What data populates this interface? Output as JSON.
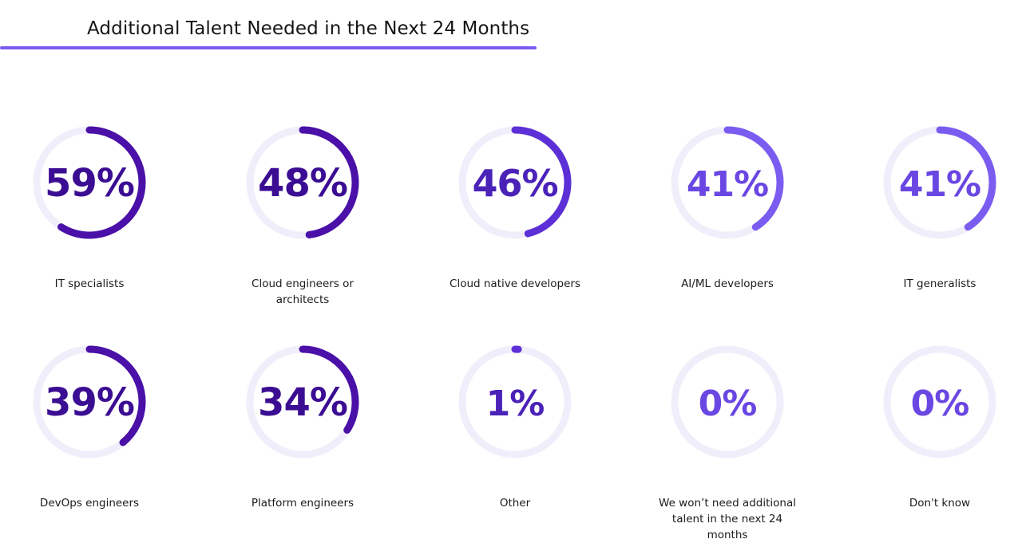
{
  "title": "Additional Talent Needed in the Next 24 Months",
  "colors": {
    "accent_line": "#7b5cf0",
    "track": "#f1eefb",
    "ring_dark": "#4a10a8",
    "ring_mid": "#5d2fd6",
    "ring_light": "#7b5cf0"
  },
  "chart_data": {
    "type": "pie",
    "categories": [
      "IT specialists",
      "Cloud engineers or architects",
      "Cloud native developers",
      "AI/ML developers",
      "IT generalists",
      "DevOps engineers",
      "Platform engineers",
      "Other",
      "We won’t need additional talent in the next 24 months",
      "Don't know"
    ],
    "values": [
      59,
      48,
      46,
      41,
      41,
      39,
      34,
      1,
      0,
      0
    ],
    "value_labels": [
      "59%",
      "48%",
      "46%",
      "41%",
      "41%",
      "39%",
      "34%",
      "1%",
      "0%",
      "0%"
    ],
    "unit": "%",
    "range": [
      0,
      100
    ]
  }
}
